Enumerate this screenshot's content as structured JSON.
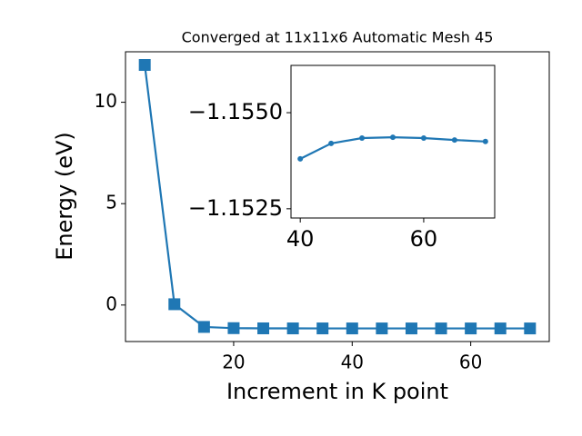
{
  "chart_data": [
    {
      "type": "line",
      "title": "Converged at 11x11x6 Automatic Mesh 45",
      "xlabel": "Increment in K point",
      "ylabel": "Energy (eV)",
      "x": [
        5,
        10,
        15,
        20,
        25,
        30,
        35,
        40,
        45,
        50,
        55,
        60,
        65,
        70
      ],
      "series": [
        {
          "color": "#1f77b4",
          "marker": "square",
          "values": [
            11.84,
            0.04,
            -1.08,
            -1.14,
            -1.15,
            -1.152,
            -1.153,
            -1.1538,
            -1.1542,
            -1.15434,
            -1.15436,
            -1.15434,
            -1.15429,
            -1.15425
          ]
        }
      ],
      "xlim": [
        1.75,
        73.25
      ],
      "ylim": [
        -1.8,
        12.49
      ],
      "xticks": [
        20,
        40,
        60
      ],
      "yticks": [
        0,
        5,
        10
      ]
    },
    {
      "type": "line",
      "x": [
        40,
        45,
        50,
        55,
        60,
        65,
        70
      ],
      "series": [
        {
          "color": "#1f77b4",
          "marker": "circle",
          "values": [
            -1.1538,
            -1.1542,
            -1.15434,
            -1.15436,
            -1.15434,
            -1.15429,
            -1.15425
          ]
        }
      ],
      "xlim": [
        38.5,
        71.5
      ],
      "ylim": [
        -1.15226,
        -1.15623
      ],
      "xticks": [
        40,
        60
      ],
      "yticks": [
        {
          "value": -1.155,
          "label": "−1.1550"
        },
        {
          "value": -1.1525,
          "label": "−1.1525"
        }
      ]
    }
  ]
}
